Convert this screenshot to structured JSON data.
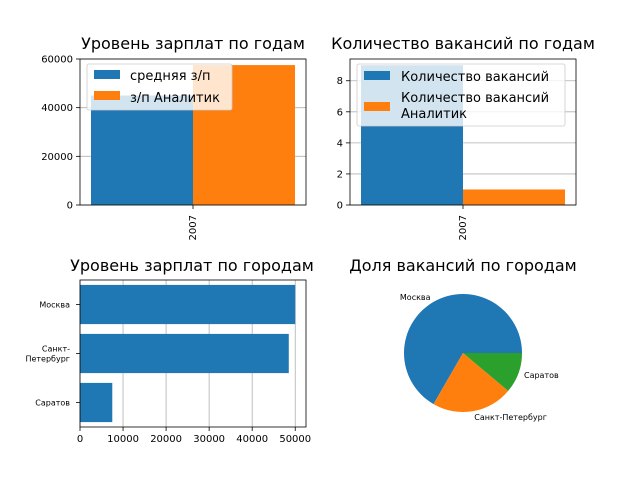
{
  "colors": {
    "blue": "#1f77b4",
    "orange": "#ff7f0e",
    "green": "#2ca02c",
    "grid": "#b0b0b0"
  },
  "chart_data": [
    {
      "id": "salary_by_year",
      "type": "bar",
      "title": "Уровень зарплат по годам",
      "categories": [
        "2007"
      ],
      "series": [
        {
          "name": "средняя з/п",
          "values": [
            45000
          ],
          "color": "#1f77b4"
        },
        {
          "name": "з/п Аналитик",
          "values": [
            57500
          ],
          "color": "#ff7f0e"
        }
      ],
      "ylim": [
        0,
        60000
      ],
      "yticks": [
        "0",
        "20000",
        "40000",
        "60000"
      ],
      "ytick_values": [
        0,
        20000,
        40000,
        60000
      ],
      "grid": "y",
      "legend": "upper left"
    },
    {
      "id": "vacancies_by_year",
      "type": "bar",
      "title": "Количество вакансий по годам",
      "categories": [
        "2007"
      ],
      "series": [
        {
          "name": "Количество вакансий",
          "values": [
            9
          ],
          "color": "#1f77b4"
        },
        {
          "name": "Количество вакансий\nАналитик",
          "values": [
            1
          ],
          "color": "#ff7f0e"
        }
      ],
      "ylim": [
        0,
        9.4
      ],
      "yticks": [
        "0",
        "2",
        "4",
        "6",
        "8"
      ],
      "ytick_values": [
        0,
        2,
        4,
        6,
        8
      ],
      "grid": "y",
      "legend": "upper left"
    },
    {
      "id": "salary_by_city",
      "type": "bar",
      "orientation": "horizontal",
      "title": "Уровень зарплат по городам",
      "categories": [
        "Москва",
        "Санкт-\nПетербург",
        "Саратов"
      ],
      "values": [
        50000,
        48500,
        7500
      ],
      "color": "#1f77b4",
      "xlim": [
        0,
        52500
      ],
      "xticks": [
        "0",
        "10000",
        "20000",
        "30000",
        "40000",
        "50000"
      ],
      "xtick_values": [
        0,
        10000,
        20000,
        30000,
        40000,
        50000
      ],
      "grid": "x"
    },
    {
      "id": "vacancy_share_by_city",
      "type": "pie",
      "title": "Доля вакансий по городам",
      "labels": [
        "Москва",
        "Санкт-Петербург",
        "Саратов"
      ],
      "values": [
        6,
        2,
        1
      ],
      "colors": [
        "#1f77b4",
        "#ff7f0e",
        "#2ca02c"
      ]
    }
  ]
}
